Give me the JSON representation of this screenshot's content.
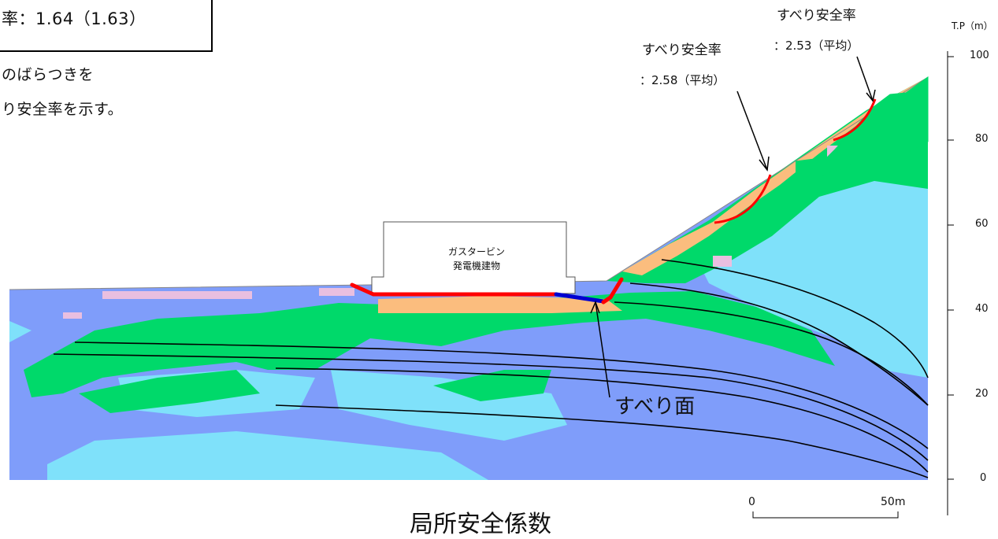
{
  "note": {
    "sf_line": "率：1.64（1.63）",
    "line1": "のばらつきを",
    "line2": "り安全率を示す。"
  },
  "building": {
    "line1": "ガスタービン",
    "line2": "発電機建物"
  },
  "slip_labels": [
    {
      "title": "すべり安全率",
      "value": "：2.58（平均）"
    },
    {
      "title": "すべり安全率",
      "value": "：2.53（平均）"
    }
  ],
  "slip_surface_label": "すべり面",
  "caption": "局所安全係数",
  "axis": {
    "unit": "T.P（m）",
    "ticks": [
      "100",
      "80",
      "60",
      "40",
      "20",
      "0"
    ]
  },
  "scale_bar": {
    "start": "0",
    "end": "50m"
  },
  "colors": {
    "deep_blue": "#7f9dfa",
    "light_blue": "#7fe1fa",
    "green": "#00d96a",
    "orange": "#fbbd7e",
    "pink": "#e9bfe0",
    "red_surface": "#ff0000",
    "blue_surface": "#0000d0"
  }
}
